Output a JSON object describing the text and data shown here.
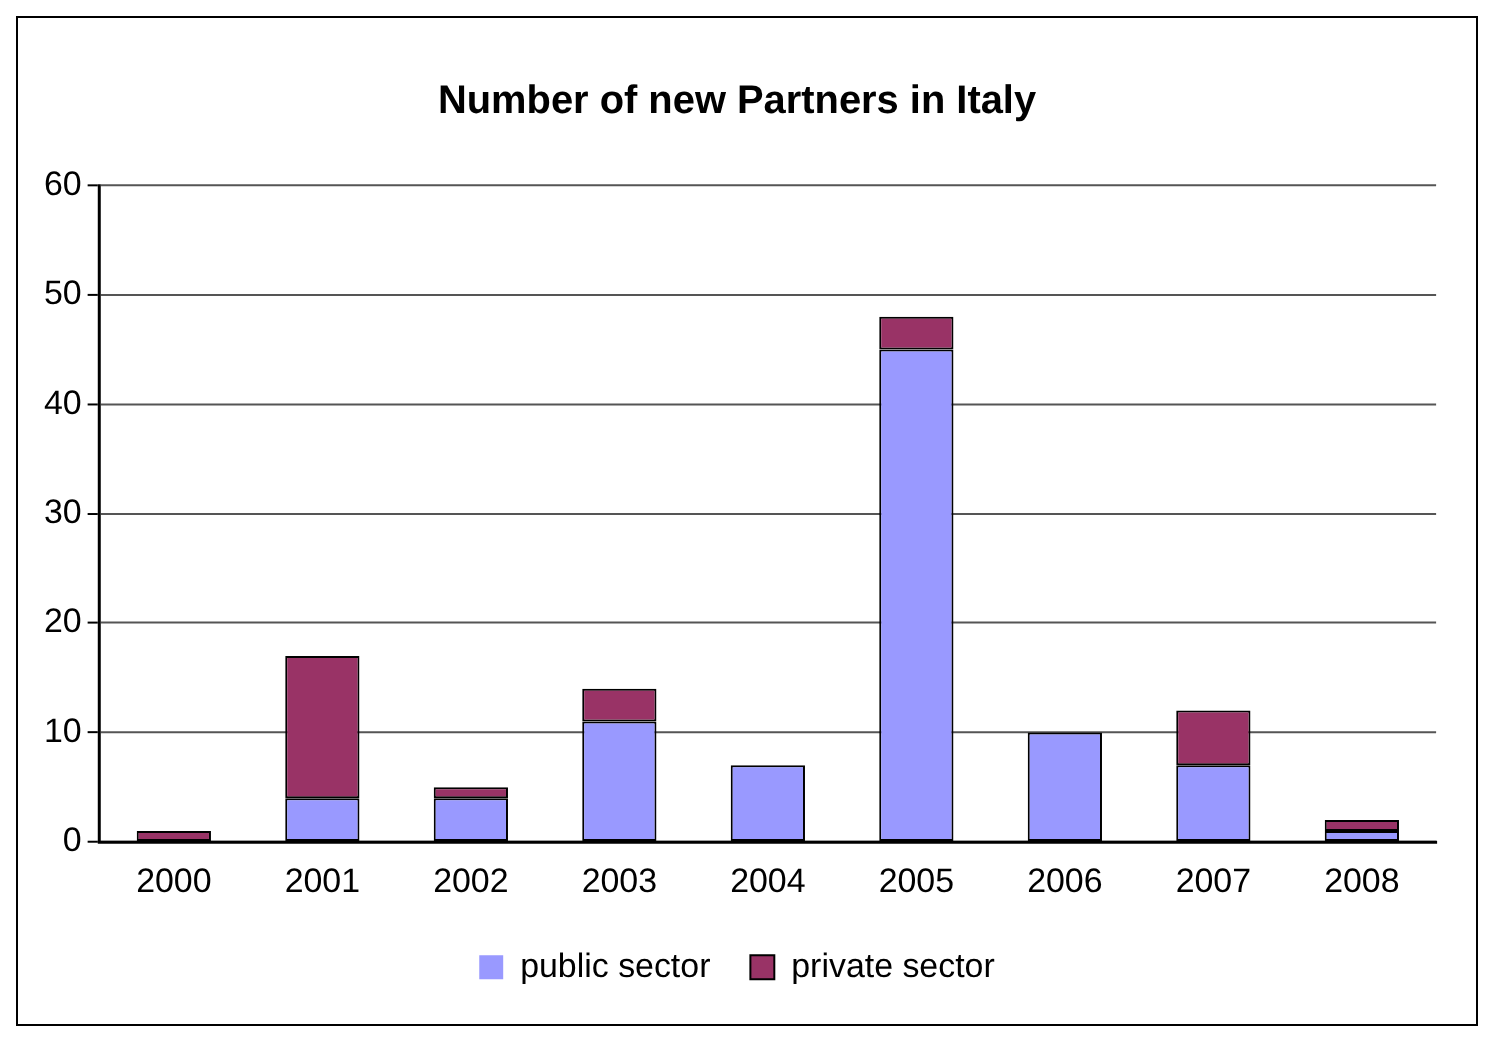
{
  "chart_data": {
    "type": "bar",
    "title": "Number of new Partners in Italy",
    "categories": [
      "2000",
      "2001",
      "2002",
      "2003",
      "2004",
      "2005",
      "2006",
      "2007",
      "2008"
    ],
    "series": [
      {
        "name": "public sector",
        "color": "#9999ff",
        "values": [
          0,
          4,
          4,
          11,
          7,
          45,
          10,
          7,
          1
        ]
      },
      {
        "name": "private sector",
        "color": "#993366",
        "values": [
          1,
          13,
          1,
          3,
          0,
          3,
          0,
          5,
          1
        ]
      }
    ],
    "stacked": true,
    "ylim": [
      0,
      60
    ],
    "yticks": [
      0,
      10,
      20,
      30,
      40,
      50,
      60
    ],
    "grid": "y",
    "legend": "bottom"
  }
}
